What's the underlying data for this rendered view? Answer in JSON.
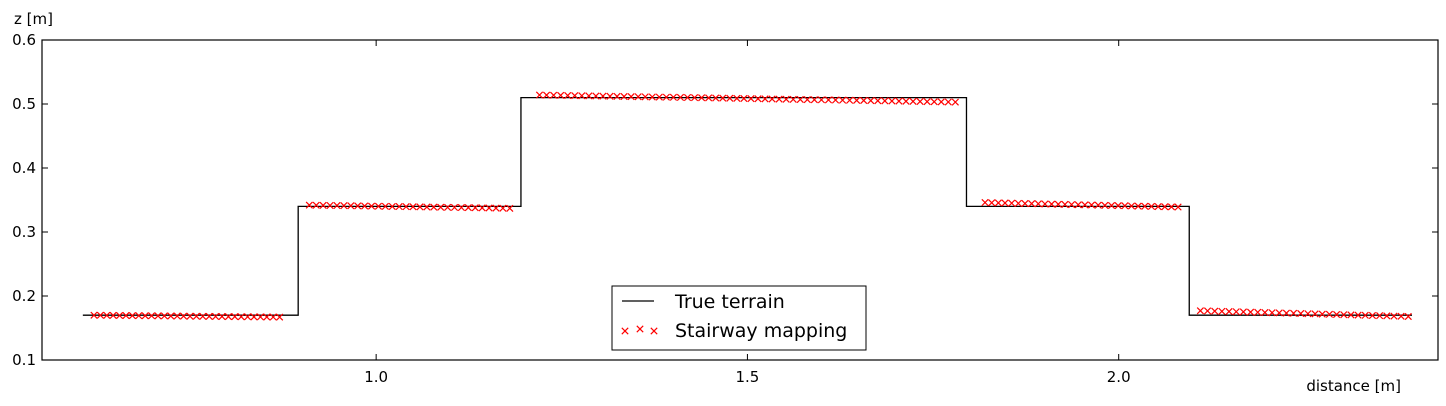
{
  "chart_data": {
    "type": "line",
    "xlabel": "distance [m]",
    "ylabel": "z [m]",
    "xlim": [
      0.55,
      2.43
    ],
    "ylim": [
      0.1,
      0.6
    ],
    "xticks": [
      "1.0",
      "1.5",
      "2.0"
    ],
    "yticks": [
      "0.1",
      "0.2",
      "0.3",
      "0.4",
      "0.5",
      "0.6"
    ],
    "grid": false,
    "legend_position": "bottom-center",
    "series": [
      {
        "name": "True terrain",
        "style": "line",
        "color": "#000000",
        "x": [
          0.605,
          0.895,
          0.895,
          1.195,
          1.195,
          1.795,
          1.795,
          2.095,
          2.095,
          2.395
        ],
        "y": [
          0.17,
          0.17,
          0.34,
          0.34,
          0.51,
          0.51,
          0.34,
          0.34,
          0.17,
          0.17
        ]
      },
      {
        "name": "Stairway mapping",
        "style": "marker-x",
        "color": "#ff0000",
        "segments": [
          {
            "x_start": 0.62,
            "x_end": 0.87,
            "y_start": 0.17,
            "y_end": 0.167,
            "count": 30
          },
          {
            "x_start": 0.91,
            "x_end": 1.18,
            "y_start": 0.342,
            "y_end": 0.337,
            "count": 30
          },
          {
            "x_start": 1.22,
            "x_end": 1.78,
            "y_start": 0.514,
            "y_end": 0.503,
            "count": 60
          },
          {
            "x_start": 1.82,
            "x_end": 2.08,
            "y_start": 0.346,
            "y_end": 0.339,
            "count": 30
          },
          {
            "x_start": 2.11,
            "x_end": 2.39,
            "y_start": 0.177,
            "y_end": 0.168,
            "count": 30
          }
        ]
      }
    ]
  }
}
